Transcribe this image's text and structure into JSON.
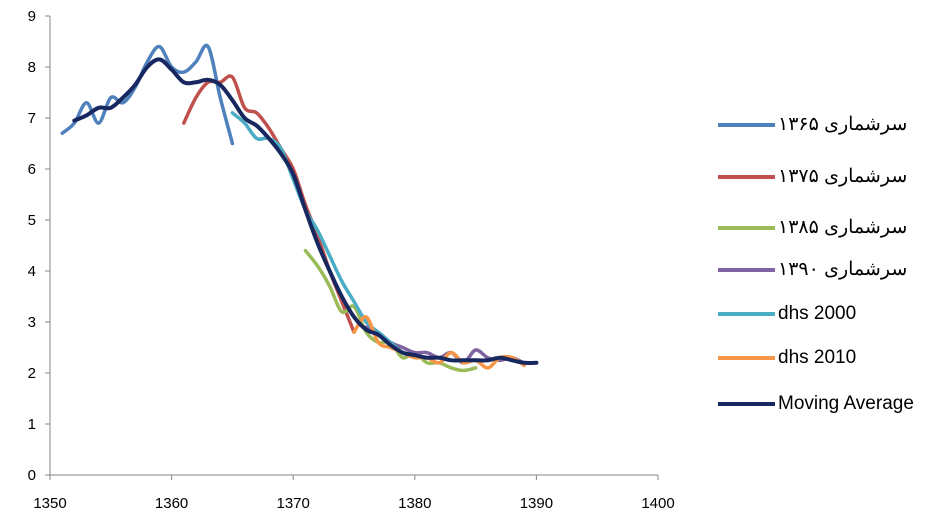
{
  "chart_data": {
    "type": "line",
    "title": "",
    "xlabel": "",
    "ylabel": "",
    "xlim": [
      1350,
      1400
    ],
    "ylim": [
      0,
      9
    ],
    "x_ticks": [
      "1350",
      "1360",
      "1370",
      "1380",
      "1390",
      "1400"
    ],
    "y_ticks": [
      "0",
      "1",
      "2",
      "3",
      "4",
      "5",
      "6",
      "7",
      "8",
      "9"
    ],
    "grid": false,
    "legend_position": "right",
    "series": [
      {
        "name": "سرشماری ۱۳۶۵",
        "color": "#4F81BD",
        "points": [
          [
            1351,
            6.7
          ],
          [
            1352,
            6.9
          ],
          [
            1353,
            7.3
          ],
          [
            1354,
            6.9
          ],
          [
            1355,
            7.4
          ],
          [
            1356,
            7.3
          ],
          [
            1357,
            7.6
          ],
          [
            1358,
            8.1
          ],
          [
            1359,
            8.4
          ],
          [
            1360,
            8.0
          ],
          [
            1361,
            7.9
          ],
          [
            1362,
            8.1
          ],
          [
            1363,
            8.4
          ],
          [
            1364,
            7.4
          ],
          [
            1365,
            6.5
          ]
        ]
      },
      {
        "name": "سرشماری ۱۳۷۵",
        "color": "#C0504D",
        "points": [
          [
            1361,
            6.9
          ],
          [
            1362,
            7.4
          ],
          [
            1363,
            7.7
          ],
          [
            1364,
            7.7
          ],
          [
            1365,
            7.8
          ],
          [
            1366,
            7.2
          ],
          [
            1367,
            7.1
          ],
          [
            1368,
            6.8
          ],
          [
            1369,
            6.4
          ],
          [
            1370,
            6.0
          ],
          [
            1371,
            5.3
          ],
          [
            1372,
            4.7
          ],
          [
            1373,
            4.0
          ],
          [
            1374,
            3.4
          ],
          [
            1375,
            2.8
          ]
        ]
      },
      {
        "name": "سرشماری ۱۳۸۵",
        "color": "#9BBB59",
        "points": [
          [
            1371,
            4.4
          ],
          [
            1372,
            4.1
          ],
          [
            1373,
            3.7
          ],
          [
            1374,
            3.2
          ],
          [
            1375,
            3.3
          ],
          [
            1376,
            2.8
          ],
          [
            1377,
            2.6
          ],
          [
            1378,
            2.6
          ],
          [
            1379,
            2.3
          ],
          [
            1380,
            2.4
          ],
          [
            1381,
            2.2
          ],
          [
            1382,
            2.2
          ],
          [
            1383,
            2.1
          ],
          [
            1384,
            2.05
          ],
          [
            1385,
            2.1
          ]
        ]
      },
      {
        "name": "سرشماری ۱۳۹۰",
        "color": "#8064A2",
        "points": [
          [
            1376,
            2.9
          ],
          [
            1377,
            2.8
          ],
          [
            1378,
            2.6
          ],
          [
            1379,
            2.5
          ],
          [
            1380,
            2.4
          ],
          [
            1381,
            2.4
          ],
          [
            1382,
            2.3
          ],
          [
            1383,
            2.4
          ],
          [
            1384,
            2.2
          ],
          [
            1385,
            2.45
          ],
          [
            1386,
            2.3
          ],
          [
            1387,
            2.25
          ],
          [
            1388,
            2.3
          ],
          [
            1389,
            2.2
          ],
          [
            1390,
            2.2
          ]
        ]
      },
      {
        "name": "dhs 2000",
        "color": "#4BACC6",
        "points": [
          [
            1365,
            7.1
          ],
          [
            1366,
            6.9
          ],
          [
            1367,
            6.6
          ],
          [
            1368,
            6.6
          ],
          [
            1369,
            6.4
          ],
          [
            1370,
            5.8
          ],
          [
            1371,
            5.2
          ],
          [
            1372,
            4.8
          ],
          [
            1373,
            4.3
          ],
          [
            1374,
            3.8
          ],
          [
            1375,
            3.4
          ],
          [
            1376,
            3.0
          ],
          [
            1377,
            2.8
          ],
          [
            1378,
            2.6
          ],
          [
            1379,
            2.4
          ],
          [
            1380,
            2.3
          ]
        ]
      },
      {
        "name": "dhs 2010",
        "color": "#F79646",
        "points": [
          [
            1375,
            2.8
          ],
          [
            1376,
            3.1
          ],
          [
            1377,
            2.6
          ],
          [
            1378,
            2.5
          ],
          [
            1379,
            2.4
          ],
          [
            1380,
            2.3
          ],
          [
            1381,
            2.3
          ],
          [
            1382,
            2.2
          ],
          [
            1383,
            2.4
          ],
          [
            1384,
            2.2
          ],
          [
            1385,
            2.25
          ],
          [
            1386,
            2.1
          ],
          [
            1387,
            2.3
          ],
          [
            1388,
            2.3
          ],
          [
            1389,
            2.15
          ]
        ]
      },
      {
        "name": "Moving Average",
        "color": "#17275F",
        "points": [
          [
            1352,
            6.95
          ],
          [
            1353,
            7.05
          ],
          [
            1354,
            7.2
          ],
          [
            1355,
            7.2
          ],
          [
            1356,
            7.4
          ],
          [
            1357,
            7.65
          ],
          [
            1358,
            8.0
          ],
          [
            1359,
            8.15
          ],
          [
            1360,
            7.95
          ],
          [
            1361,
            7.7
          ],
          [
            1362,
            7.7
          ],
          [
            1363,
            7.75
          ],
          [
            1364,
            7.65
          ],
          [
            1365,
            7.35
          ],
          [
            1366,
            7.0
          ],
          [
            1367,
            6.85
          ],
          [
            1368,
            6.6
          ],
          [
            1369,
            6.3
          ],
          [
            1370,
            5.9
          ],
          [
            1371,
            5.2
          ],
          [
            1372,
            4.55
          ],
          [
            1373,
            4.0
          ],
          [
            1374,
            3.5
          ],
          [
            1375,
            3.1
          ],
          [
            1376,
            2.85
          ],
          [
            1377,
            2.75
          ],
          [
            1378,
            2.55
          ],
          [
            1379,
            2.4
          ],
          [
            1380,
            2.35
          ],
          [
            1381,
            2.3
          ],
          [
            1382,
            2.3
          ],
          [
            1383,
            2.25
          ],
          [
            1384,
            2.25
          ],
          [
            1385,
            2.25
          ],
          [
            1386,
            2.25
          ],
          [
            1387,
            2.3
          ],
          [
            1388,
            2.25
          ],
          [
            1389,
            2.2
          ],
          [
            1390,
            2.2
          ]
        ]
      }
    ]
  }
}
